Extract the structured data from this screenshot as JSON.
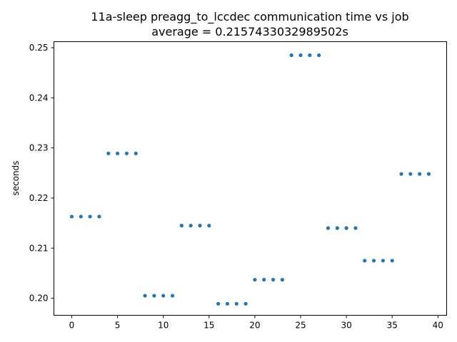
{
  "chart_data": {
    "type": "scatter",
    "title": "11a-sleep preagg_to_lccdec communication time vs job",
    "subtitle": "average = 0.2157433032989502s",
    "xlabel": "",
    "ylabel": "seconds",
    "xlim": [
      -1.95,
      40.95
    ],
    "ylim": [
      0.1966,
      0.2512
    ],
    "xticks": [
      0,
      5,
      10,
      15,
      20,
      25,
      30,
      35,
      40
    ],
    "xtick_labels": [
      "0",
      "5",
      "10",
      "15",
      "20",
      "25",
      "30",
      "35",
      "40"
    ],
    "yticks": [
      0.2,
      0.21,
      0.22,
      0.23,
      0.24,
      0.25
    ],
    "ytick_labels": [
      "0.20",
      "0.21",
      "0.22",
      "0.23",
      "0.24",
      "0.25"
    ],
    "grid": false,
    "marker_color": "#1f77b4",
    "series": [
      {
        "x": [
          0,
          1,
          2,
          3,
          4,
          5,
          6,
          7,
          8,
          9,
          10,
          11,
          12,
          13,
          14,
          15,
          16,
          17,
          18,
          19,
          20,
          21,
          22,
          23,
          24,
          25,
          26,
          27,
          28,
          29,
          30,
          31,
          32,
          33,
          34,
          35,
          36,
          37,
          38,
          39
        ],
        "y": [
          0.2163,
          0.2163,
          0.2163,
          0.2163,
          0.2289,
          0.2289,
          0.2289,
          0.2289,
          0.2005,
          0.2005,
          0.2005,
          0.2005,
          0.2145,
          0.2145,
          0.2145,
          0.2145,
          0.1989,
          0.1989,
          0.1989,
          0.1989,
          0.2037,
          0.2037,
          0.2037,
          0.2037,
          0.2485,
          0.2485,
          0.2485,
          0.2485,
          0.214,
          0.214,
          0.214,
          0.214,
          0.2075,
          0.2075,
          0.2075,
          0.2075,
          0.2248,
          0.2248,
          0.2248,
          0.2248
        ]
      }
    ]
  }
}
